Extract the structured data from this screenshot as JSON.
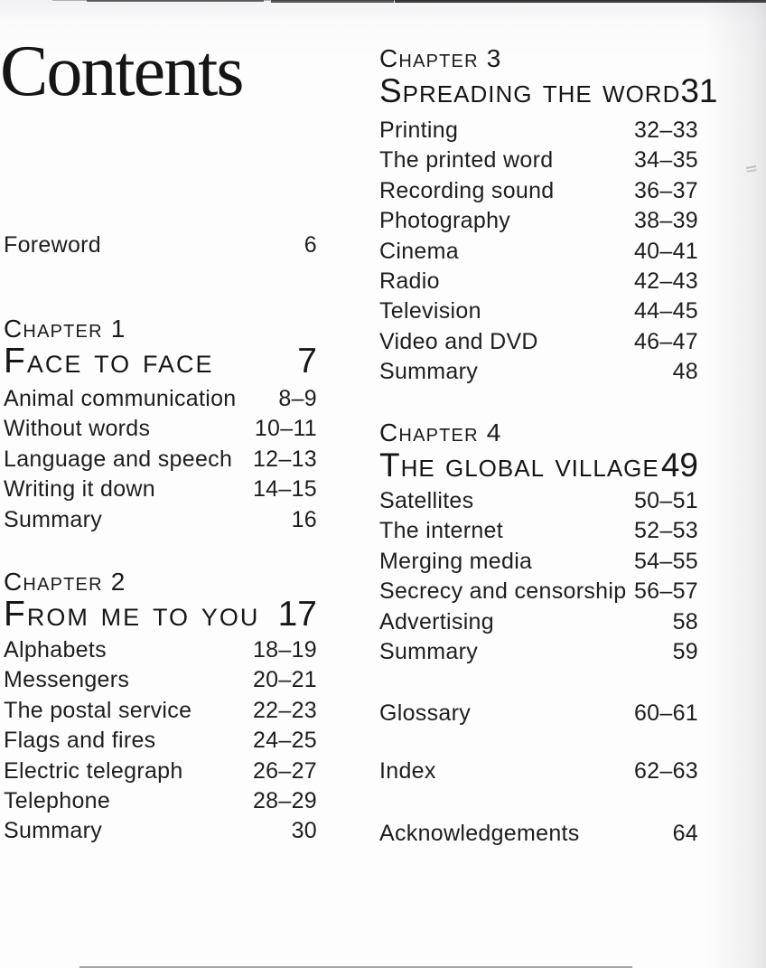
{
  "page_title": "Contents",
  "colors": {
    "text": "#1e1e1e",
    "paper": "#fdfdfd"
  },
  "left": {
    "foreword": {
      "label": "Foreword",
      "pages": "6"
    },
    "chapters": [
      {
        "kicker": "Chapter 1",
        "title": "Face to face",
        "page": "7",
        "entries": [
          {
            "label": "Animal communication",
            "pages": "8–9"
          },
          {
            "label": "Without words",
            "pages": "10–11"
          },
          {
            "label": "Language and speech",
            "pages": "12–13"
          },
          {
            "label": "Writing it down",
            "pages": "14–15"
          },
          {
            "label": "Summary",
            "pages": "16"
          }
        ]
      },
      {
        "kicker": "Chapter 2",
        "title": "From me to you",
        "page": "17",
        "entries": [
          {
            "label": "Alphabets",
            "pages": "18–19"
          },
          {
            "label": "Messengers",
            "pages": "20–21"
          },
          {
            "label": "The postal service",
            "pages": "22–23"
          },
          {
            "label": "Flags and fires",
            "pages": "24–25"
          },
          {
            "label": "Electric telegraph",
            "pages": "26–27"
          },
          {
            "label": "Telephone",
            "pages": "28–29"
          },
          {
            "label": "Summary",
            "pages": "30"
          }
        ]
      }
    ]
  },
  "right": {
    "chapters": [
      {
        "kicker": "Chapter 3",
        "title": "Spreading the word",
        "page": "31",
        "entries": [
          {
            "label": "Printing",
            "pages": "32–33"
          },
          {
            "label": "The printed word",
            "pages": "34–35"
          },
          {
            "label": "Recording sound",
            "pages": "36–37"
          },
          {
            "label": "Photography",
            "pages": "38–39"
          },
          {
            "label": "Cinema",
            "pages": "40–41"
          },
          {
            "label": "Radio",
            "pages": "42–43"
          },
          {
            "label": "Television",
            "pages": "44–45"
          },
          {
            "label": "Video and DVD",
            "pages": "46–47"
          },
          {
            "label": "Summary",
            "pages": "48"
          }
        ]
      },
      {
        "kicker": "Chapter 4",
        "title": "The global village",
        "page": "49",
        "entries": [
          {
            "label": "Satellites",
            "pages": "50–51"
          },
          {
            "label": "The internet",
            "pages": "52–53"
          },
          {
            "label": "Merging media",
            "pages": "54–55"
          },
          {
            "label": "Secrecy and censorship",
            "pages": "56–57"
          },
          {
            "label": "Advertising",
            "pages": "58"
          },
          {
            "label": "Summary",
            "pages": "59"
          }
        ]
      }
    ],
    "back_matter": [
      {
        "label": "Glossary",
        "pages": "60–61"
      },
      {
        "label": "Index",
        "pages": "62–63"
      },
      {
        "label": "Acknowledgements",
        "pages": "64"
      }
    ]
  }
}
